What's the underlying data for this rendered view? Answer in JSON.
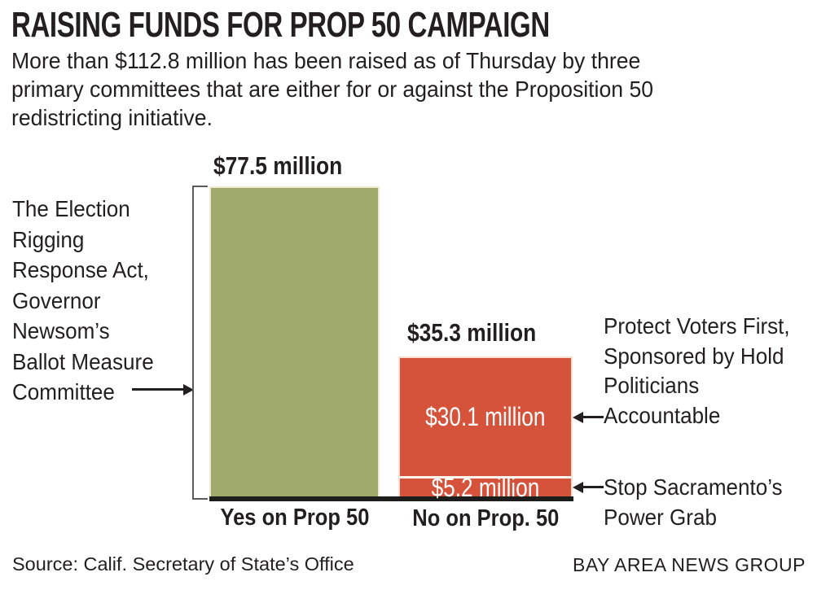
{
  "header": {
    "title": "RAISING FUNDS FOR PROP 50 CAMPAIGN",
    "subtitle_lines": [
      "More than $112.8 million has been raised as of Thursday by three",
      "primary committees that are either for or against the Proposition 50",
      "redistricting initiative."
    ]
  },
  "chart_data": {
    "type": "bar",
    "subtype": "stacked-vertical",
    "title": "RAISING FUNDS FOR PROP 50 CAMPAIGN",
    "subtitle": "More than $112.8 million has been raised as of Thursday by three primary committees that are either for or against the Proposition 50 redistricting initiative.",
    "unit": "USD millions",
    "total_raised": 112.8,
    "categories": [
      "Yes on Prop 50",
      "No on Prop. 50"
    ],
    "ylim": [
      0,
      80
    ],
    "grid": false,
    "legend": "none (arrow-annotated committees)",
    "stacks": [
      {
        "category": "Yes on Prop 50",
        "total": 77.5,
        "total_label": "$77.5 million",
        "segments": [
          {
            "committee": "The Election Rigging Response Act, Governor Newsom’s Ballot Measure Committee",
            "value": 77.5,
            "label": "$77.5 million",
            "color": "#9fa969"
          }
        ]
      },
      {
        "category": "No on Prop. 50",
        "total": 35.3,
        "total_label": "$35.3 million",
        "segments": [
          {
            "committee": "Protect Voters First, Sponsored by Hold Politicians Accountable",
            "value": 30.1,
            "label": "$30.1 million",
            "color": "#d5523b"
          },
          {
            "committee": "Stop Sacramento’s Power Grab",
            "value": 5.2,
            "label": "$5.2 million",
            "color": "#d5523b"
          }
        ]
      }
    ]
  },
  "chart": {
    "value_label_yes": "$77.5 million",
    "value_label_no": "$35.3 million",
    "segment_label_top": "$30.1 million",
    "segment_label_bottom": "$5.2 million",
    "x_label_yes": "Yes on Prop 50",
    "x_label_no": "No on Prop. 50",
    "left_annotation_lines": [
      "The Election",
      "Rigging",
      "Response Act,",
      "Governor",
      "Newsom’s",
      "Ballot Measure",
      "Committee"
    ],
    "right_annotation_protect_lines": [
      "Protect Voters First,",
      "Sponsored by Hold",
      "Politicians",
      "Accountable"
    ],
    "right_annotation_stop_lines": [
      "Stop Sacramento’s",
      "Power Grab"
    ]
  },
  "colors": {
    "yes_bar": "#9fa969",
    "no_bar": "#d5523b",
    "text": "#231f20",
    "baseline": "#1d1d1b",
    "bracket": "#5a5b5e",
    "yes_bar_border": "#eee9d2",
    "no_bar_border": "#f7decf"
  },
  "footer": {
    "source": "Source: Calif. Secretary of State’s Office",
    "credit": "BAY AREA NEWS GROUP"
  }
}
